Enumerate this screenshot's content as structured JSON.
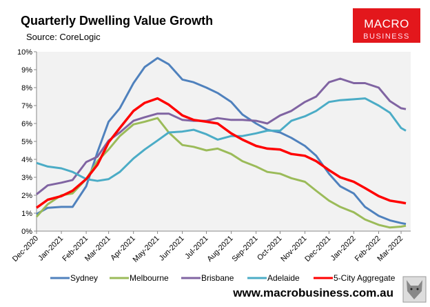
{
  "header": {
    "title": "Quarterly Dwelling Value Growth",
    "source": "Source: CoreLogic"
  },
  "logo": {
    "line1": "MACRO",
    "line2": "BUSINESS",
    "color": "#e3171c"
  },
  "footer": {
    "website": "www.macrobusiness.com.au",
    "image_icon": "wolf-icon"
  },
  "chart_data": {
    "type": "line",
    "title": "Quarterly Dwelling Value Growth",
    "xlabel": "",
    "ylabel": "",
    "ylim": [
      0,
      10
    ],
    "yticks": [
      "0%",
      "1%",
      "2%",
      "3%",
      "4%",
      "5%",
      "6%",
      "7%",
      "8%",
      "9%",
      "10%"
    ],
    "xlim": [
      "2020-12-01",
      "2022-03-13"
    ],
    "xticks": [
      {
        "date": "2020-12-01",
        "label": "Dec-2020"
      },
      {
        "date": "2021-01-01",
        "label": "Jan-2021"
      },
      {
        "date": "2021-02-01",
        "label": "Feb-2021"
      },
      {
        "date": "2021-03-01",
        "label": "Mar-2021"
      },
      {
        "date": "2021-04-01",
        "label": "Apr-2021"
      },
      {
        "date": "2021-05-01",
        "label": "May-2021"
      },
      {
        "date": "2021-06-01",
        "label": "Jun-2021"
      },
      {
        "date": "2021-07-01",
        "label": "Jul-2021"
      },
      {
        "date": "2021-08-01",
        "label": "Aug-2021"
      },
      {
        "date": "2021-09-01",
        "label": "Sep-2021"
      },
      {
        "date": "2021-10-01",
        "label": "Oct-2021"
      },
      {
        "date": "2021-11-01",
        "label": "Nov-2021"
      },
      {
        "date": "2021-12-01",
        "label": "Dec-2021"
      },
      {
        "date": "2022-01-01",
        "label": "Jan-2022"
      },
      {
        "date": "2022-02-01",
        "label": "Feb-2022"
      },
      {
        "date": "2022-03-01",
        "label": "Mar-2022"
      }
    ],
    "grid": false,
    "legend": "bottom",
    "plot_background": "#f2f2f2",
    "x": [
      "2020-12-01",
      "2020-12-15",
      "2021-01-01",
      "2021-01-15",
      "2021-02-01",
      "2021-02-15",
      "2021-03-01",
      "2021-03-15",
      "2021-04-01",
      "2021-04-15",
      "2021-05-01",
      "2021-05-15",
      "2021-06-01",
      "2021-06-15",
      "2021-07-01",
      "2021-07-15",
      "2021-08-01",
      "2021-08-15",
      "2021-09-01",
      "2021-09-15",
      "2021-10-01",
      "2021-10-15",
      "2021-11-01",
      "2021-11-15",
      "2021-12-01",
      "2021-12-15",
      "2022-01-01",
      "2022-01-15",
      "2022-02-01",
      "2022-02-15",
      "2022-03-01",
      "2022-03-07"
    ],
    "series": [
      {
        "name": "Sydney",
        "color": "#4f81bd",
        "width": 3,
        "values": [
          0.95,
          1.3,
          1.35,
          1.35,
          2.5,
          4.4,
          6.1,
          6.85,
          8.25,
          9.15,
          9.65,
          9.3,
          8.45,
          8.3,
          8.0,
          7.7,
          7.2,
          6.5,
          6.0,
          5.65,
          5.5,
          5.2,
          4.75,
          4.2,
          3.2,
          2.5,
          2.1,
          1.35,
          0.85,
          0.6,
          0.45,
          0.4
        ]
      },
      {
        "name": "Melbourne",
        "color": "#9bbb59",
        "width": 3,
        "values": [
          0.8,
          1.5,
          2.0,
          2.1,
          2.9,
          3.9,
          4.55,
          5.3,
          5.95,
          6.1,
          6.3,
          5.5,
          4.8,
          4.7,
          4.5,
          4.6,
          4.3,
          3.9,
          3.6,
          3.3,
          3.2,
          2.95,
          2.75,
          2.25,
          1.7,
          1.35,
          1.05,
          0.65,
          0.35,
          0.2,
          0.25,
          0.3
        ]
      },
      {
        "name": "Brisbane",
        "color": "#8064a2",
        "width": 3,
        "values": [
          2.05,
          2.55,
          2.7,
          2.85,
          3.85,
          4.15,
          5.05,
          5.5,
          6.15,
          6.35,
          6.55,
          6.55,
          6.2,
          6.15,
          6.15,
          6.3,
          6.2,
          6.2,
          6.15,
          6.0,
          6.45,
          6.7,
          7.2,
          7.5,
          8.3,
          8.5,
          8.25,
          8.25,
          8.0,
          7.25,
          6.85,
          6.8
        ]
      },
      {
        "name": "Adelaide",
        "color": "#4bacc6",
        "width": 3,
        "values": [
          3.8,
          3.6,
          3.5,
          3.3,
          2.9,
          2.8,
          2.9,
          3.3,
          4.05,
          4.55,
          5.05,
          5.5,
          5.55,
          5.65,
          5.4,
          5.1,
          5.3,
          5.3,
          5.45,
          5.6,
          5.6,
          6.15,
          6.4,
          6.7,
          7.2,
          7.3,
          7.35,
          7.4,
          7.0,
          6.6,
          5.75,
          5.6
        ]
      },
      {
        "name": "5-City Aggregate",
        "color": "#ff0000",
        "width": 3.5,
        "values": [
          1.3,
          1.75,
          1.95,
          2.25,
          2.9,
          3.7,
          4.95,
          5.75,
          6.7,
          7.15,
          7.4,
          7.05,
          6.45,
          6.2,
          6.1,
          6.0,
          5.45,
          5.1,
          4.75,
          4.6,
          4.55,
          4.3,
          4.2,
          3.9,
          3.4,
          3.0,
          2.75,
          2.4,
          1.95,
          1.7,
          1.6,
          1.55
        ]
      }
    ]
  }
}
